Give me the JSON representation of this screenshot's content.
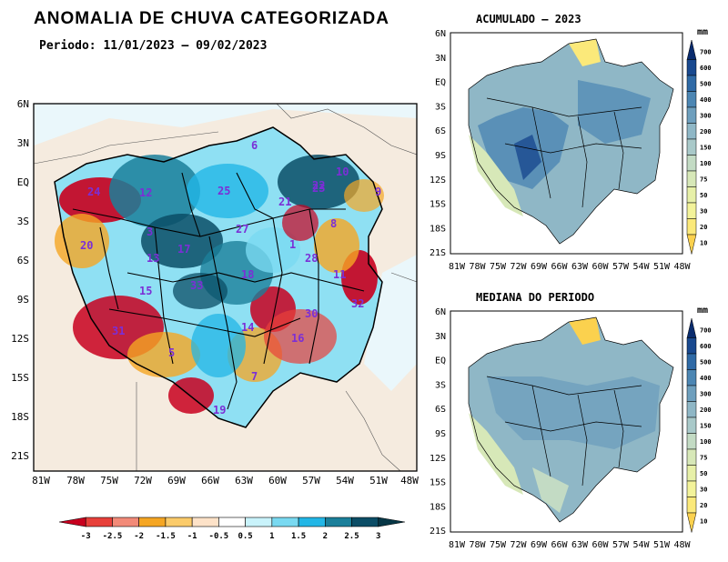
{
  "main": {
    "title": "ANOMALIA DE CHUVA CATEGORIZADA",
    "period": "Periodo: 11/01/2023 – 09/02/2023",
    "lat_ticks": [
      "6N",
      "3N",
      "EQ",
      "3S",
      "6S",
      "9S",
      "12S",
      "15S",
      "18S",
      "21S"
    ],
    "lon_ticks": [
      "81W",
      "78W",
      "75W",
      "72W",
      "69W",
      "66W",
      "63W",
      "60W",
      "57W",
      "54W",
      "51W",
      "48W"
    ],
    "basin_labels": [
      "6",
      "12",
      "25",
      "24",
      "22",
      "10",
      "3",
      "27",
      "21",
      "23",
      "9",
      "8",
      "20",
      "13",
      "1",
      "28",
      "17",
      "11",
      "18",
      "15",
      "33",
      "32",
      "30",
      "31",
      "14",
      "16",
      "5",
      "7",
      "19"
    ],
    "colorbar": {
      "ticks": [
        "-3",
        "-2.5",
        "-2",
        "-1.5",
        "-1",
        "-0.5",
        "0.5",
        "1",
        "1.5",
        "2",
        "2.5",
        "3"
      ],
      "colors": [
        "#c8001e",
        "#e8403a",
        "#f28a78",
        "#f5a623",
        "#fbcb6a",
        "#fde2c8",
        "#ffffff",
        "#c9f3fb",
        "#79d9f1",
        "#22b6e6",
        "#1b7f9a",
        "#0b4d66",
        "#073746"
      ]
    }
  },
  "acumulado": {
    "title": "ACUMULADO – 2023",
    "unit": "mm",
    "legend_ticks": [
      "700",
      "600",
      "500",
      "400",
      "300",
      "200",
      "150",
      "100",
      "75",
      "50",
      "30",
      "20",
      "10"
    ],
    "legend_colors": [
      "#0a2c6e",
      "#19498f",
      "#2f6aa6",
      "#4c86b3",
      "#6e9fbd",
      "#8fb7c6",
      "#a9c9c9",
      "#c3dbc4",
      "#d7e8b8",
      "#e7f0a8",
      "#f3f39a",
      "#fbe97a",
      "#fbd14e"
    ]
  },
  "mediana": {
    "title": "MEDIANA DO PERIODO",
    "unit": "mm",
    "legend_ticks": [
      "700",
      "600",
      "500",
      "400",
      "300",
      "200",
      "150",
      "100",
      "75",
      "50",
      "30",
      "20",
      "10"
    ]
  },
  "small_lat_ticks": [
    "6N",
    "3N",
    "EQ",
    "3S",
    "6S",
    "9S",
    "12S",
    "15S",
    "18S",
    "21S"
  ],
  "small_lon_ticks": [
    "81W",
    "78W",
    "75W",
    "72W",
    "69W",
    "66W",
    "63W",
    "60W",
    "57W",
    "54W",
    "51W",
    "48W"
  ]
}
